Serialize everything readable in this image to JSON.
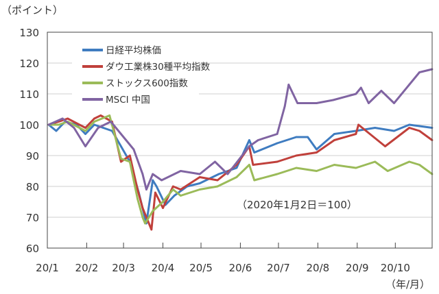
{
  "chart_data": {
    "type": "line",
    "ylabel": "（ポイント）",
    "xlabel": "（年/月）",
    "annotation": "（2020年1月2日＝100）",
    "ylim": [
      60,
      130
    ],
    "yticks": [
      60,
      70,
      80,
      90,
      100,
      110,
      120,
      130
    ],
    "xlim": [
      "2020-01-01",
      "2020-10-30"
    ],
    "xticks": [
      {
        "label": "20/1",
        "date": "2020-01-01"
      },
      {
        "label": "20/2",
        "date": "2020-02-01"
      },
      {
        "label": "20/3",
        "date": "2020-03-01"
      },
      {
        "label": "20/4",
        "date": "2020-04-01"
      },
      {
        "label": "20/5",
        "date": "2020-05-01"
      },
      {
        "label": "20/6",
        "date": "2020-06-01"
      },
      {
        "label": "20/7",
        "date": "2020-07-01"
      },
      {
        "label": "20/8",
        "date": "2020-08-01"
      },
      {
        "label": "20/9",
        "date": "2020-09-01"
      },
      {
        "label": "20/10",
        "date": "2020-10-01"
      }
    ],
    "grid": true,
    "legend": "top-left",
    "series": [
      {
        "name": "日経平均株価",
        "color": "#3f7cc0",
        "x": [
          "2020-01-02",
          "2020-01-08",
          "2020-01-15",
          "2020-01-24",
          "2020-01-31",
          "2020-02-07",
          "2020-02-14",
          "2020-02-21",
          "2020-02-28",
          "2020-03-06",
          "2020-03-13",
          "2020-03-19",
          "2020-03-24",
          "2020-03-27",
          "2020-04-03",
          "2020-04-10",
          "2020-04-20",
          "2020-04-30",
          "2020-05-15",
          "2020-05-29",
          "2020-06-08",
          "2020-06-12",
          "2020-06-30",
          "2020-07-15",
          "2020-07-24",
          "2020-07-31",
          "2020-08-14",
          "2020-08-31",
          "2020-09-15",
          "2020-09-30",
          "2020-10-12",
          "2020-10-30"
        ],
        "y": [
          100,
          98,
          101,
          100,
          97,
          100,
          99,
          98,
          93,
          88,
          78,
          68,
          82,
          80,
          74,
          77,
          80,
          81,
          84,
          86,
          95,
          91,
          94,
          96,
          96,
          92,
          97,
          98,
          99,
          98,
          100,
          99
        ]
      },
      {
        "name": "ダウ工業株30種平均指数",
        "color": "#c0403b",
        "x": [
          "2020-01-02",
          "2020-01-10",
          "2020-01-17",
          "2020-01-31",
          "2020-02-07",
          "2020-02-12",
          "2020-02-21",
          "2020-02-28",
          "2020-03-06",
          "2020-03-12",
          "2020-03-16",
          "2020-03-23",
          "2020-03-26",
          "2020-04-01",
          "2020-04-09",
          "2020-04-15",
          "2020-04-30",
          "2020-05-14",
          "2020-05-29",
          "2020-06-08",
          "2020-06-11",
          "2020-06-30",
          "2020-07-15",
          "2020-07-31",
          "2020-08-14",
          "2020-08-31",
          "2020-09-02",
          "2020-09-23",
          "2020-10-12",
          "2020-10-20",
          "2020-10-30"
        ],
        "y": [
          100,
          101,
          102,
          99,
          102,
          103,
          101,
          88,
          90,
          79,
          73,
          66,
          78,
          73,
          80,
          79,
          83,
          82,
          87,
          93,
          87,
          88,
          90,
          91,
          95,
          97,
          100,
          93,
          99,
          98,
          95
        ]
      },
      {
        "name": "ストックス600指数",
        "color": "#9bbb59",
        "x": [
          "2020-01-02",
          "2020-01-10",
          "2020-01-17",
          "2020-01-31",
          "2020-02-07",
          "2020-02-19",
          "2020-02-28",
          "2020-03-06",
          "2020-03-12",
          "2020-03-16",
          "2020-03-18",
          "2020-03-24",
          "2020-04-01",
          "2020-04-09",
          "2020-04-15",
          "2020-04-30",
          "2020-05-14",
          "2020-05-29",
          "2020-06-08",
          "2020-06-12",
          "2020-06-30",
          "2020-07-15",
          "2020-07-31",
          "2020-08-14",
          "2020-08-31",
          "2020-09-15",
          "2020-09-25",
          "2020-10-12",
          "2020-10-20",
          "2020-10-30"
        ],
        "y": [
          100,
          100,
          101,
          98,
          101,
          103,
          89,
          88,
          76,
          70,
          68,
          72,
          75,
          79,
          77,
          79,
          80,
          83,
          87,
          82,
          84,
          86,
          85,
          87,
          86,
          88,
          85,
          88,
          87,
          84
        ]
      },
      {
        "name": "MSCI 中国",
        "color": "#8064a2",
        "x": [
          "2020-01-02",
          "2020-01-13",
          "2020-01-22",
          "2020-01-31",
          "2020-02-10",
          "2020-02-20",
          "2020-03-03",
          "2020-03-09",
          "2020-03-16",
          "2020-03-19",
          "2020-03-24",
          "2020-03-31",
          "2020-04-15",
          "2020-04-30",
          "2020-05-12",
          "2020-05-22",
          "2020-06-08",
          "2020-06-15",
          "2020-06-30",
          "2020-07-06",
          "2020-07-09",
          "2020-07-16",
          "2020-07-31",
          "2020-08-13",
          "2020-08-31",
          "2020-09-04",
          "2020-09-10",
          "2020-09-20",
          "2020-09-30",
          "2020-10-12",
          "2020-10-20",
          "2020-10-30"
        ],
        "y": [
          100,
          102,
          99,
          93,
          99,
          101,
          95,
          92,
          84,
          79,
          84,
          82,
          85,
          84,
          88,
          84,
          93,
          95,
          97,
          106,
          113,
          107,
          107,
          108,
          110,
          112,
          107,
          111,
          107,
          113,
          117,
          118
        ]
      }
    ]
  }
}
